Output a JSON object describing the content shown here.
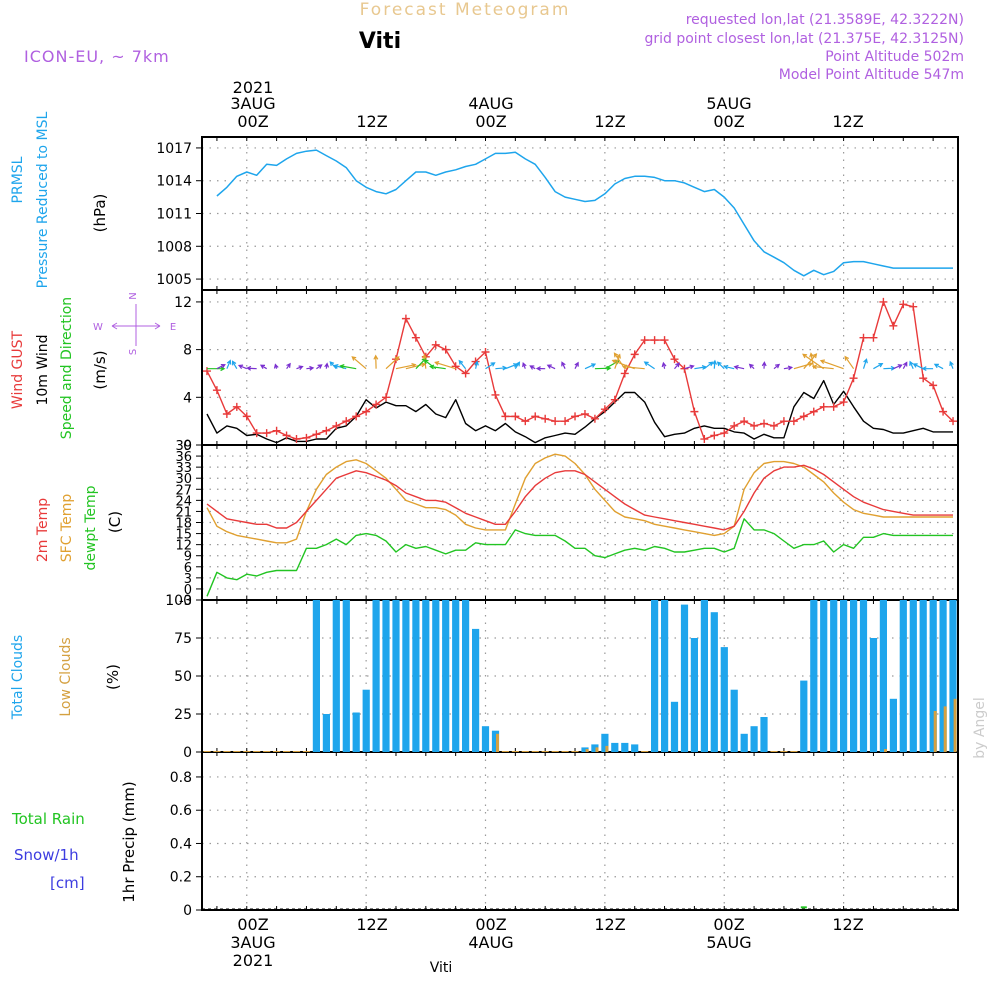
{
  "header": {
    "title": "Forecast Meteogram",
    "location": "Viti",
    "model": "ICON-EU, ~ 7km",
    "requested": "requested lon,lat (21.3589E, 42.3222N)",
    "gridpoint": "grid point closest lon,lat (21.375E, 42.3125N)",
    "point_alt": "Point Altitude 502m",
    "model_alt": "Model Point Altitude 547m",
    "footer_name": "Viti",
    "credit": "by Angel"
  },
  "time_axis": {
    "top_year": "2021",
    "tick_labels": [
      "00Z",
      "12Z",
      "00Z",
      "12Z",
      "00Z",
      "12Z"
    ],
    "date_labels": [
      "3AUG",
      "4AUG",
      "5AUG"
    ],
    "bottom_year": "2021"
  },
  "colors": {
    "pressure": "#1ea5ec",
    "gust": "#e83a3a",
    "wind": "#000000",
    "wind_dir": "#22c422",
    "t2m": "#e83a3a",
    "tsfc": "#e0a030",
    "dewpt": "#22c422",
    "total_clouds": "#1ea5ec",
    "low_clouds": "#d4a040",
    "rain": "#22c422",
    "snow": "#3c3ce0",
    "axis_purple": "#b060e0",
    "title_orange": "#e8c890"
  },
  "panels": {
    "pressure": {
      "label1": "PRMSL",
      "label2": "Pressure Reduced to MSL",
      "unit": "(hPa)"
    },
    "wind": {
      "label_gust": "Wind GUST",
      "label_wind": "10m Wind",
      "label_dir": "Speed and Direction",
      "unit": "(m/s)",
      "compass_n": "N",
      "compass_s": "S",
      "compass_w": "W",
      "compass_e": "E"
    },
    "temp": {
      "label_t2m": "2m Temp",
      "label_tsfc": "SFC Temp",
      "label_dew": "dewpt Temp",
      "unit": "(C)"
    },
    "clouds": {
      "label_total": "Total Clouds",
      "label_low": "Low Clouds",
      "unit": "(%)"
    },
    "precip": {
      "label_rain": "Total  Rain",
      "label_snow": "Snow/1h",
      "label_cm": "[cm]",
      "unit": "1hr Precip (mm)"
    }
  },
  "chart_data": [
    {
      "type": "line",
      "name": "pressure",
      "x_hours": [
        -3,
        -2,
        -1,
        0,
        1,
        2,
        3,
        4,
        5,
        6,
        7,
        8,
        9,
        10,
        11,
        12,
        13,
        14,
        15,
        16,
        17,
        18,
        19,
        20,
        21,
        22,
        23,
        24,
        25,
        26,
        27,
        28,
        29,
        30,
        31,
        32,
        33,
        34,
        35,
        36,
        37,
        38,
        39,
        40,
        41,
        42,
        43,
        44,
        45,
        46,
        47,
        48,
        49,
        50,
        51,
        52,
        53,
        54,
        55,
        56,
        57,
        58,
        59,
        60,
        61,
        62,
        63,
        64,
        65,
        66,
        67,
        68,
        69,
        70,
        71
      ],
      "values": [
        1012.6,
        1013.4,
        1014.4,
        1014.8,
        1014.5,
        1015.5,
        1015.4,
        1016.0,
        1016.5,
        1016.7,
        1016.8,
        1016.3,
        1015.8,
        1015.2,
        1014.0,
        1013.4,
        1013.0,
        1012.8,
        1013.2,
        1014.0,
        1014.8,
        1014.8,
        1014.5,
        1014.8,
        1015.0,
        1015.3,
        1015.5,
        1016.0,
        1016.5,
        1016.5,
        1016.6,
        1016.0,
        1015.5,
        1014.3,
        1013.0,
        1012.5,
        1012.3,
        1012.1,
        1012.2,
        1012.8,
        1013.7,
        1014.2,
        1014.4,
        1014.4,
        1014.3,
        1014.0,
        1014.0,
        1013.8,
        1013.4,
        1013.0,
        1013.2,
        1012.5,
        1011.5,
        1010.0,
        1008.5,
        1007.5,
        1007.0,
        1006.5,
        1005.8,
        1005.3,
        1005.8,
        1005.4,
        1005.7,
        1006.5,
        1006.6,
        1006.6,
        1006.4,
        1006.2,
        1006.0,
        1006.0,
        1006.0,
        1006.0,
        1006.0,
        1006.0,
        1006.0
      ],
      "ylim": [
        1004,
        1018
      ],
      "yticks": [
        1005,
        1008,
        1011,
        1014,
        1017
      ]
    },
    {
      "type": "line",
      "name": "wind",
      "x_hours": [
        -4,
        -3,
        -2,
        -1,
        0,
        1,
        2,
        3,
        4,
        5,
        6,
        7,
        8,
        9,
        10,
        11,
        12,
        13,
        14,
        15,
        16,
        17,
        18,
        19,
        20,
        21,
        22,
        23,
        24,
        25,
        26,
        27,
        28,
        29,
        30,
        31,
        32,
        33,
        34,
        35,
        36,
        37,
        38,
        39,
        40,
        41,
        42,
        43,
        44,
        45,
        46,
        47,
        48,
        49,
        50,
        51,
        52,
        53,
        54,
        55,
        56,
        57,
        58,
        59,
        60,
        61,
        62,
        63,
        64,
        65,
        66,
        67,
        68,
        69,
        70,
        71
      ],
      "gust": [
        6.2,
        4.6,
        2.6,
        3.2,
        2.4,
        1.0,
        1.0,
        1.2,
        0.8,
        0.5,
        0.6,
        0.9,
        1.2,
        1.6,
        2.0,
        2.4,
        2.8,
        3.4,
        4.0,
        7.2,
        10.6,
        9.0,
        7.4,
        8.4,
        8.0,
        6.6,
        6.0,
        7.0,
        7.8,
        4.2,
        2.4,
        2.4,
        2.0,
        2.4,
        2.2,
        2.0,
        2.0,
        2.4,
        2.6,
        2.2,
        3.0,
        3.8,
        6.0,
        7.6,
        8.8,
        8.8,
        8.8,
        7.2,
        6.4,
        2.8,
        0.5,
        0.8,
        1.0,
        1.6,
        2.0,
        1.6,
        1.8,
        1.6,
        2.0,
        2.0,
        2.4,
        2.8,
        3.2,
        3.2,
        3.6,
        5.6,
        9.0,
        9.0,
        12.0,
        10.0,
        11.8,
        11.6,
        5.6,
        5.0,
        2.8,
        2.0
      ],
      "wind": [
        2.6,
        1.0,
        1.6,
        1.4,
        0.8,
        0.9,
        0.5,
        0.2,
        0.6,
        0.3,
        0.3,
        0.5,
        0.5,
        1.4,
        1.6,
        2.4,
        3.8,
        3.1,
        3.6,
        3.3,
        3.3,
        2.8,
        3.4,
        2.6,
        2.3,
        3.8,
        1.8,
        1.2,
        1.6,
        1.2,
        1.8,
        1.1,
        0.7,
        0.2,
        0.6,
        0.8,
        1.0,
        0.9,
        1.5,
        2.2,
        2.8,
        3.6,
        4.4,
        4.4,
        3.6,
        1.9,
        0.7,
        0.9,
        1.0,
        1.4,
        1.6,
        1.4,
        1.4,
        1.1,
        1.0,
        0.5,
        0.9,
        0.6,
        0.6,
        3.2,
        4.4,
        3.9,
        5.4,
        3.4,
        4.5,
        3.2,
        2.0,
        1.4,
        1.3,
        1.0,
        1.0,
        1.2,
        1.4,
        1.1,
        1.1,
        1.1
      ],
      "ylim": [
        0,
        13
      ],
      "yticks": [
        0,
        4,
        8,
        12
      ]
    },
    {
      "type": "line",
      "name": "temperature",
      "x_hours": [
        -4,
        -3,
        -2,
        -1,
        0,
        1,
        2,
        3,
        4,
        5,
        6,
        7,
        8,
        9,
        10,
        11,
        12,
        13,
        14,
        15,
        16,
        17,
        18,
        19,
        20,
        21,
        22,
        23,
        24,
        25,
        26,
        27,
        28,
        29,
        30,
        31,
        32,
        33,
        34,
        35,
        36,
        37,
        38,
        39,
        40,
        41,
        42,
        43,
        44,
        45,
        46,
        47,
        48,
        49,
        50,
        51,
        52,
        53,
        54,
        55,
        56,
        57,
        58,
        59,
        60,
        61,
        62,
        63,
        64,
        65,
        66,
        67,
        68,
        69,
        70,
        71
      ],
      "t2m": [
        23,
        21,
        19,
        18.5,
        18,
        17.5,
        17.5,
        16.5,
        16.5,
        18,
        21,
        24,
        27,
        30,
        31,
        32,
        31.5,
        30.5,
        29.5,
        28,
        26,
        25,
        24,
        24,
        23.5,
        22,
        20.5,
        19.5,
        18.5,
        17.5,
        17.5,
        21,
        25,
        28,
        30,
        31.5,
        32,
        32,
        31,
        29,
        27,
        25,
        23,
        21.5,
        20,
        19.5,
        19,
        18.5,
        18,
        17.5,
        17,
        16.5,
        16,
        17,
        21,
        26,
        30,
        32,
        33,
        33,
        33.5,
        32.5,
        31,
        29,
        27,
        25,
        23.5,
        22.5,
        21.5,
        21,
        20.5,
        20,
        20,
        20,
        20,
        20
      ],
      "tsfc": [
        22,
        17,
        15.5,
        14.5,
        14,
        13.5,
        13,
        12.5,
        12.5,
        13.5,
        21,
        27,
        31,
        33,
        34.5,
        35,
        34,
        32,
        30,
        27,
        24,
        23,
        22,
        22,
        21.5,
        20,
        17.5,
        16.5,
        16,
        16,
        16,
        23,
        30,
        34,
        35.5,
        36.5,
        36,
        34,
        31,
        27,
        24,
        21,
        19.5,
        19,
        18.5,
        17.5,
        17,
        16.5,
        16,
        15.5,
        15,
        14.5,
        15,
        17,
        27,
        31.5,
        34,
        34.5,
        34.5,
        34,
        33,
        31,
        29,
        26,
        23.5,
        21.5,
        20.5,
        20,
        19.5,
        19.5,
        19.5,
        19.5,
        19.5,
        19.5,
        19.5,
        19.5
      ],
      "dewpt": [
        -2,
        4.5,
        3,
        2.5,
        4,
        3.5,
        4.5,
        5,
        5,
        5,
        11,
        11,
        12,
        13.5,
        12,
        14.5,
        15,
        14.5,
        13,
        10,
        12,
        11,
        11.5,
        10.5,
        9.5,
        10.5,
        10.5,
        12.5,
        12,
        12,
        12,
        16,
        15,
        14.5,
        14.5,
        14.5,
        13,
        11,
        11,
        9,
        8.5,
        9.5,
        10.5,
        11,
        10.5,
        11.5,
        11,
        10,
        10,
        10.5,
        11,
        11,
        10,
        11,
        19,
        16,
        16,
        15,
        13,
        11,
        12,
        12,
        13,
        10,
        12,
        11,
        14,
        14,
        15,
        14.5,
        14.5,
        14.5,
        14.5,
        14.5,
        14.5,
        14.5
      ],
      "ylim": [
        -3,
        39
      ],
      "yticks": [
        -3,
        0,
        3,
        6,
        9,
        12,
        15,
        18,
        21,
        24,
        27,
        30,
        33,
        36,
        39
      ]
    },
    {
      "type": "bar",
      "name": "clouds",
      "x_hours": [
        -4,
        -3,
        -2,
        -1,
        0,
        1,
        2,
        3,
        4,
        5,
        6,
        7,
        8,
        9,
        10,
        11,
        12,
        13,
        14,
        15,
        16,
        17,
        18,
        19,
        20,
        21,
        22,
        23,
        24,
        25,
        26,
        27,
        28,
        29,
        30,
        31,
        32,
        33,
        34,
        35,
        36,
        37,
        38,
        39,
        40,
        41,
        42,
        43,
        44,
        45,
        46,
        47,
        48,
        49,
        50,
        51,
        52,
        53,
        54,
        55,
        56,
        57,
        58,
        59,
        60,
        61,
        62,
        63,
        64,
        65,
        66,
        67,
        68,
        69,
        70,
        71
      ],
      "total": [
        0,
        0,
        0,
        0,
        0,
        0,
        0,
        0,
        0,
        0,
        0,
        100,
        25,
        100,
        100,
        26,
        41,
        100,
        100,
        100,
        100,
        100,
        100,
        100,
        100,
        100,
        100,
        81,
        17,
        14,
        0,
        0,
        0,
        0,
        0,
        0,
        0,
        0,
        3,
        5,
        12,
        6,
        6,
        5,
        0,
        100,
        100,
        33,
        97,
        75,
        100,
        92,
        69,
        41,
        12,
        17,
        23,
        0,
        0,
        0,
        47,
        100,
        100,
        100,
        100,
        100,
        100,
        75,
        100,
        35,
        100,
        100,
        100,
        100,
        100,
        100
      ],
      "low": [
        0,
        0,
        0,
        0,
        0,
        0,
        0,
        0,
        0,
        0,
        0,
        0,
        0,
        0,
        0,
        0,
        0,
        0,
        0,
        0,
        0,
        0,
        0,
        0,
        0,
        0,
        0,
        0,
        0,
        12,
        0,
        0,
        0,
        0,
        0,
        0,
        0,
        0,
        2,
        3,
        4,
        0,
        0,
        0,
        0,
        0,
        0,
        0,
        0,
        0,
        0,
        0,
        0,
        0,
        0,
        0,
        0,
        0,
        0,
        0,
        0,
        0,
        0,
        0,
        0,
        0,
        0,
        0,
        2,
        0,
        0,
        0,
        0,
        27,
        30,
        35
      ],
      "ylim": [
        0,
        100
      ],
      "yticks": [
        0,
        25,
        50,
        75,
        100
      ]
    },
    {
      "type": "bar",
      "name": "precipitation",
      "x_hours": [
        56
      ],
      "rain": [
        0.01
      ],
      "snow": [
        0
      ],
      "ylim": [
        0,
        0.95
      ],
      "yticks": [
        0,
        0.2,
        0.4,
        0.6,
        0.8
      ]
    }
  ]
}
